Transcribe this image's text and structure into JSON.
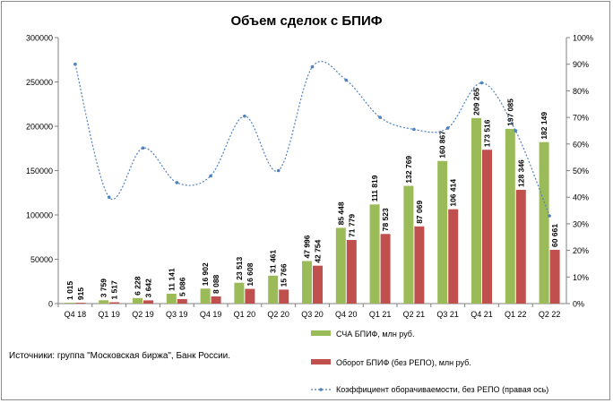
{
  "chart_data": {
    "type": "bar",
    "title": "Объем сделок с БПИФ",
    "categories": [
      "Q4 18",
      "Q1 19",
      "Q2 19",
      "Q3 19",
      "Q4 19",
      "Q1 20",
      "Q2 20",
      "Q3 20",
      "Q4 20",
      "Q1 21",
      "Q2 21",
      "Q3 21",
      "Q4 21",
      "Q1 22",
      "Q2 22"
    ],
    "series": [
      {
        "name": "СЧА БПИФ, млн руб.",
        "axis": "left",
        "color": "#9bbb59",
        "values": [
          1015,
          3759,
          6228,
          11141,
          16902,
          23513,
          31461,
          47996,
          85448,
          111819,
          132769,
          160867,
          209265,
          197085,
          182149
        ],
        "labels": [
          "1 015",
          "3 759",
          "6 228",
          "11 141",
          "16 902",
          "23 513",
          "31 461",
          "47 996",
          "85 448",
          "111 819",
          "132 769",
          "160 867",
          "209 265",
          "197 085",
          "182 149"
        ]
      },
      {
        "name": "Оборот БПИФ (без РЕПО), млн руб.",
        "axis": "left",
        "color": "#c0504d",
        "values": [
          915,
          1517,
          3642,
          5086,
          8088,
          16608,
          15766,
          42754,
          71779,
          78523,
          87069,
          106414,
          173516,
          128346,
          60661
        ],
        "labels": [
          "915",
          "1 517",
          "3 642",
          "5 086",
          "8 088",
          "16 608",
          "15 766",
          "42 754",
          "71 779",
          "78 523",
          "87 069",
          "106 414",
          "173 516",
          "128 346",
          "60 661"
        ]
      },
      {
        "name": "Коэффициент оборачиваемости, без РЕПО (правая ось)",
        "axis": "right",
        "type": "line",
        "color": "#4f81bd",
        "values": [
          0.9,
          0.4,
          0.585,
          0.455,
          0.48,
          0.705,
          0.5,
          0.89,
          0.84,
          0.7,
          0.655,
          0.66,
          0.83,
          0.65,
          0.33
        ]
      }
    ],
    "left_axis": {
      "ylim": [
        0,
        300000
      ],
      "ticks": [
        "0",
        "50000",
        "100000",
        "150000",
        "200000",
        "250000",
        "300000"
      ]
    },
    "right_axis": {
      "ylim": [
        0,
        1
      ],
      "ticks": [
        "0%",
        "10%",
        "20%",
        "30%",
        "40%",
        "50%",
        "60%",
        "70%",
        "80%",
        "90%",
        "100%"
      ]
    },
    "grid": false,
    "legend_position": "bottom-right"
  },
  "source_note": "Источники: группа \"Московская биржа\", Банк России."
}
